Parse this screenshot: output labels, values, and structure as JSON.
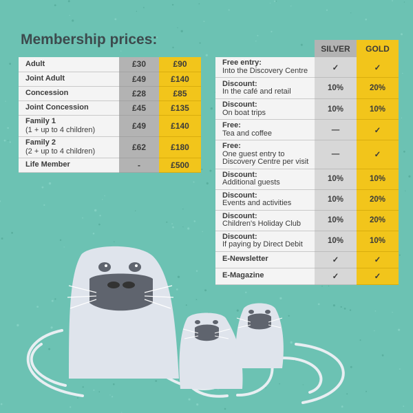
{
  "title": "Membership prices:",
  "prices": {
    "rows": [
      {
        "label": "Adult",
        "sub": "",
        "silver": "£30",
        "gold": "£90"
      },
      {
        "label": "Joint Adult",
        "sub": "",
        "silver": "£49",
        "gold": "£140"
      },
      {
        "label": "Concession",
        "sub": "",
        "silver": "£28",
        "gold": "£85"
      },
      {
        "label": "Joint Concession",
        "sub": "",
        "silver": "£45",
        "gold": "£135"
      },
      {
        "label": "Family 1",
        "sub": "(1 + up to 4 children)",
        "silver": "£49",
        "gold": "£140"
      },
      {
        "label": "Family 2",
        "sub": "(2 + up to 4 children)",
        "silver": "£62",
        "gold": "£180"
      },
      {
        "label": "Life Member",
        "sub": "",
        "silver": "-",
        "gold": "£500"
      }
    ]
  },
  "benefits": {
    "silver_header": "SILVER",
    "gold_header": "GOLD",
    "rows": [
      {
        "title": "Free entry:",
        "desc": "Into the Discovery Centre",
        "silver": "✓",
        "gold": "✓"
      },
      {
        "title": "Discount:",
        "desc": "In the café and retail",
        "silver": "10%",
        "gold": "20%"
      },
      {
        "title": "Discount:",
        "desc": "On boat trips",
        "silver": "10%",
        "gold": "10%"
      },
      {
        "title": "Free:",
        "desc": "Tea and coffee",
        "silver": "—",
        "gold": "✓"
      },
      {
        "title": "Free:",
        "desc": "One guest entry to Discovery Centre per visit",
        "silver": "—",
        "gold": "✓"
      },
      {
        "title": "Discount:",
        "desc": "Additional guests",
        "silver": "10%",
        "gold": "10%"
      },
      {
        "title": "Discount:",
        "desc": "Events and activities",
        "silver": "10%",
        "gold": "20%"
      },
      {
        "title": "Discount:",
        "desc": "Children's Holiday Club",
        "silver": "10%",
        "gold": "20%"
      },
      {
        "title": "Discount:",
        "desc": "If paying by Direct Debit",
        "silver": "10%",
        "gold": "10%"
      },
      {
        "title": "E-Newsletter",
        "desc": "",
        "silver": "✓",
        "gold": "✓"
      },
      {
        "title": "E-Magazine",
        "desc": "",
        "silver": "✓",
        "gold": "✓"
      }
    ]
  },
  "colors": {
    "background": "#6cc2b3",
    "silver": "#b3b3b3",
    "gold": "#f2c51b",
    "seal": "#dfe4ec",
    "seal_face": "#5f646e"
  },
  "illustration": "three-seals-in-water"
}
